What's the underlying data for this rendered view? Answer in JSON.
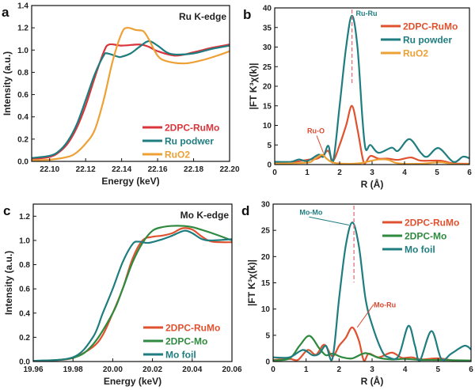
{
  "chart_data": [
    {
      "panel": "a",
      "type": "line",
      "title": "Ru K-edge",
      "xlabel": "Energy (keV)",
      "ylabel": "Intensity (a.u.)",
      "xlim": [
        22.09,
        22.2
      ],
      "ylim": [
        0,
        1.4
      ],
      "xticks": [
        "22.10",
        "22.12",
        "22.14",
        "22.16",
        "22.18",
        "22.20"
      ],
      "yticks": [
        "0.0",
        "0.2",
        "0.4",
        "0.6",
        "0.8",
        "1.0",
        "1.2",
        "1.4"
      ],
      "legend": "bottom-right",
      "annotations": [],
      "series": [
        {
          "name": "2DPC-RuMo",
          "color": "#d9353a",
          "x": [
            22.09,
            22.1,
            22.105,
            22.11,
            22.115,
            22.12,
            22.125,
            22.13,
            22.133,
            22.14,
            22.15,
            22.155,
            22.16,
            22.17,
            22.18,
            22.19,
            22.2
          ],
          "y": [
            0.02,
            0.04,
            0.08,
            0.16,
            0.3,
            0.5,
            0.75,
            0.98,
            1.05,
            1.04,
            1.05,
            1.03,
            0.99,
            0.95,
            0.98,
            1.02,
            1.05
          ]
        },
        {
          "name": "Ru podwer",
          "color": "#1f7d80",
          "x": [
            22.09,
            22.1,
            22.105,
            22.11,
            22.115,
            22.12,
            22.125,
            22.13,
            22.132,
            22.138,
            22.14,
            22.145,
            22.15,
            22.155,
            22.16,
            22.165,
            22.17,
            22.18,
            22.19,
            22.2
          ],
          "y": [
            0.03,
            0.05,
            0.09,
            0.18,
            0.33,
            0.55,
            0.78,
            0.95,
            0.97,
            0.94,
            0.94,
            0.97,
            1.03,
            1.08,
            1.04,
            0.98,
            0.96,
            0.97,
            1.01,
            1.04
          ]
        },
        {
          "name": "RuO2",
          "color": "#eea035",
          "x": [
            22.09,
            22.1,
            22.11,
            22.115,
            22.12,
            22.125,
            22.13,
            22.135,
            22.14,
            22.143,
            22.148,
            22.152,
            22.155,
            22.16,
            22.165,
            22.175,
            22.185,
            22.195,
            22.2
          ],
          "y": [
            0.01,
            0.015,
            0.04,
            0.08,
            0.16,
            0.28,
            0.55,
            0.9,
            1.15,
            1.2,
            1.18,
            1.17,
            1.1,
            0.95,
            0.9,
            0.88,
            0.91,
            0.96,
            0.99
          ]
        }
      ]
    },
    {
      "panel": "b",
      "type": "line",
      "title": "",
      "xlabel": "R (Å)",
      "ylabel": "|FT K³χ(k)|",
      "xlim": [
        0,
        6
      ],
      "ylim": [
        0,
        40
      ],
      "xticks": [
        "0",
        "1",
        "2",
        "3",
        "4",
        "5",
        "6"
      ],
      "yticks": [
        "0",
        "5",
        "10",
        "15",
        "20",
        "25",
        "30",
        "35",
        "40"
      ],
      "legend": "top-right",
      "dashed_line_x": 2.38,
      "annotations": [
        {
          "text": "Ru-Ru",
          "x": 2.5,
          "y": 38,
          "color": "#1f7d80"
        },
        {
          "text": "Ru-O",
          "x": 1.0,
          "y": 8,
          "color": "#d9482f",
          "arrow_to": [
            1.5,
            3
          ]
        }
      ],
      "series": [
        {
          "name": "2DPC-RuMo",
          "color": "#e0522f",
          "x": [
            0,
            0.5,
            1,
            1.3,
            1.5,
            1.65,
            1.8,
            2.0,
            2.2,
            2.38,
            2.55,
            2.7,
            2.78,
            2.95,
            3.2,
            3.5,
            3.8,
            4.2,
            4.5,
            5.1,
            5.5,
            6
          ],
          "y": [
            0.3,
            0.5,
            1.2,
            1.5,
            2.5,
            3.5,
            1,
            5,
            10,
            15,
            9,
            2,
            0.3,
            2.2,
            1.5,
            1.5,
            1.2,
            1.8,
            1,
            1,
            0.3,
            0.2
          ]
        },
        {
          "name": "Ru powder",
          "color": "#1f7d80",
          "x": [
            0,
            0.5,
            0.75,
            1,
            1.35,
            1.5,
            1.65,
            1.8,
            2.0,
            2.2,
            2.38,
            2.55,
            2.7,
            2.8,
            2.95,
            3.2,
            3.6,
            3.8,
            4.15,
            4.5,
            4.7,
            5.05,
            5.5,
            5.8,
            6
          ],
          "y": [
            0.7,
            0.7,
            1.3,
            0.9,
            2.5,
            2,
            4.8,
            0.8,
            15,
            30,
            38,
            30,
            12,
            4,
            5,
            3,
            4.3,
            3.5,
            6.5,
            3,
            2,
            4.2,
            0.7,
            2,
            1.6
          ]
        },
        {
          "name": "RuO2",
          "color": "#eea035",
          "x": [
            0,
            1,
            1.2,
            1.45,
            1.6,
            1.8,
            2.2,
            2.6,
            2.9,
            3.2,
            3.5,
            3.8,
            4.5,
            5.1,
            5.5,
            6
          ],
          "y": [
            0.2,
            0.5,
            1.2,
            2.5,
            1.5,
            0.5,
            0.2,
            0.3,
            0.8,
            1.3,
            1.2,
            0.3,
            0.2,
            0.6,
            0.1,
            0.1
          ]
        }
      ]
    },
    {
      "panel": "c",
      "type": "line",
      "title": "Mo K-edge",
      "xlabel": "Energy (keV)",
      "ylabel": "Intensity (a.u.)",
      "xlim": [
        19.96,
        20.06
      ],
      "ylim": [
        0,
        1.3
      ],
      "xticks": [
        "19.96",
        "19.98",
        "20.00",
        "20.02",
        "20.04",
        "20.06"
      ],
      "yticks": [
        "0.0",
        "0.2",
        "0.4",
        "0.6",
        "0.8",
        "1.0",
        "1.2"
      ],
      "legend": "bottom-right",
      "annotations": [],
      "series": [
        {
          "name": "2DPC-RuMo",
          "color": "#e0522f",
          "x": [
            19.96,
            19.97,
            19.98,
            19.99,
            19.995,
            20.0,
            20.005,
            20.01,
            20.015,
            20.02,
            20.025,
            20.03,
            20.035,
            20.04,
            20.045,
            20.05,
            20.06
          ],
          "y": [
            0.005,
            0.01,
            0.03,
            0.12,
            0.22,
            0.4,
            0.6,
            0.85,
            1.0,
            1.03,
            1.04,
            1.06,
            1.1,
            1.09,
            1.03,
            0.99,
            0.985
          ]
        },
        {
          "name": "2DPC-Mo",
          "color": "#2e8a3e",
          "x": [
            19.96,
            19.98,
            19.99,
            20.0,
            20.005,
            20.01,
            20.015,
            20.02,
            20.025,
            20.03,
            20.035,
            20.04,
            20.05,
            20.06
          ],
          "y": [
            0.005,
            0.03,
            0.14,
            0.4,
            0.6,
            0.82,
            0.98,
            1.08,
            1.11,
            1.12,
            1.12,
            1.11,
            1.06,
            1.0
          ]
        },
        {
          "name": "Mo foil",
          "color": "#1f7d80",
          "x": [
            19.96,
            19.98,
            19.99,
            19.995,
            20.0,
            20.005,
            20.01,
            20.013,
            20.018,
            20.025,
            20.03,
            20.036,
            20.04,
            20.045,
            20.05,
            20.06
          ],
          "y": [
            0.005,
            0.035,
            0.2,
            0.4,
            0.6,
            0.82,
            0.97,
            0.99,
            0.98,
            1.01,
            1.04,
            1.08,
            1.06,
            1.01,
            1.0,
            1.01
          ]
        }
      ]
    },
    {
      "panel": "d",
      "type": "line",
      "title": "",
      "xlabel": "R (Å)",
      "ylabel": "|FT K³χ(k)|",
      "xlim": [
        0,
        6
      ],
      "ylim": [
        0,
        30
      ],
      "xticks": [
        "0",
        "1",
        "2",
        "3",
        "4",
        "5",
        "6"
      ],
      "yticks": [
        "0",
        "5",
        "10",
        "15",
        "20",
        "25",
        "30"
      ],
      "legend": "top-right",
      "dashed_line_x": 2.45,
      "annotations": [
        {
          "text": "Mo-Mo",
          "x": 0.8,
          "y": 28,
          "color": "#1f7d80",
          "arrow_to": [
            2.3,
            26
          ]
        },
        {
          "text": "Mo-Ru",
          "x": 3.05,
          "y": 10.3,
          "color": "#d9482f",
          "arrow_from": [
            2.55,
            6.5
          ]
        }
      ],
      "series": [
        {
          "name": "2DPC-RuMo",
          "color": "#e0522f",
          "x": [
            0,
            0.5,
            0.75,
            1.05,
            1.3,
            1.55,
            1.8,
            2.0,
            2.2,
            2.4,
            2.6,
            2.75,
            2.9,
            3.2,
            3.6,
            3.9,
            4.2,
            4.5,
            5,
            5.5,
            6
          ],
          "y": [
            0.3,
            0.5,
            0.3,
            2.2,
            1.3,
            3.2,
            1,
            3,
            4.5,
            6.5,
            4,
            0.2,
            1.5,
            0.8,
            1.7,
            0.7,
            0.8,
            0.4,
            0.6,
            0.2,
            0.1
          ]
        },
        {
          "name": "2DPC-Mo",
          "color": "#2e8a3e",
          "x": [
            0,
            0.5,
            0.8,
            1.1,
            1.4,
            1.6,
            1.8,
            2.1,
            2.4,
            2.8,
            3.2,
            3.6,
            4,
            4.5,
            5,
            6
          ],
          "y": [
            0.2,
            0.6,
            3,
            4.9,
            2.5,
            1.2,
            1.5,
            0.8,
            0.6,
            1.6,
            0.7,
            0.4,
            0.5,
            0.3,
            0.3,
            0.2
          ]
        },
        {
          "name": "Mo foil",
          "color": "#1f7d80",
          "x": [
            0,
            0.5,
            0.9,
            1.2,
            1.4,
            1.6,
            1.8,
            2.0,
            2.2,
            2.4,
            2.6,
            2.8,
            3.0,
            3.3,
            3.5,
            3.8,
            4.1,
            4.3,
            4.45,
            4.8,
            5.1,
            5.4,
            5.8,
            6
          ],
          "y": [
            0.8,
            0.8,
            2.2,
            1.2,
            1.5,
            3,
            0.6,
            12,
            22,
            26.5,
            22,
            12,
            7,
            2,
            0.8,
            1,
            6.8,
            3,
            0.2,
            5.8,
            0.5,
            1.5,
            3,
            2.3
          ]
        }
      ]
    }
  ]
}
